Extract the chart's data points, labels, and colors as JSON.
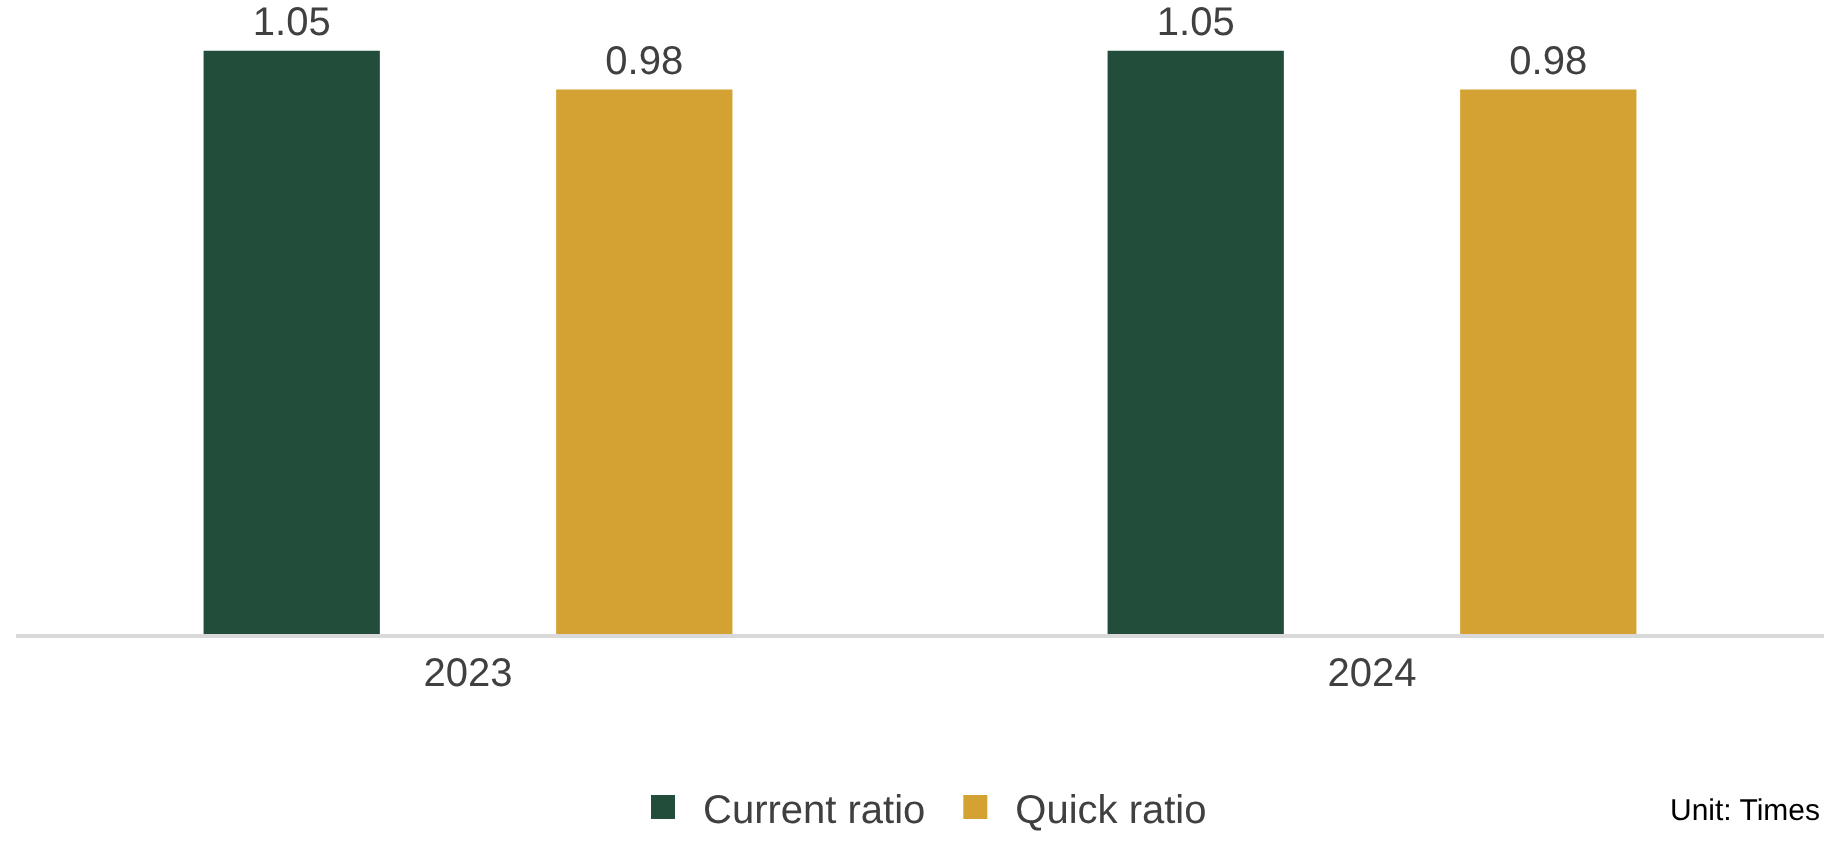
{
  "chart_data": {
    "type": "bar",
    "categories": [
      "2023",
      "2024"
    ],
    "series": [
      {
        "name": "Current ratio",
        "color": "#214d3a",
        "values": [
          1.05,
          1.05
        ]
      },
      {
        "name": "Quick ratio",
        "color": "#d4a232",
        "values": [
          0.98,
          0.98
        ]
      }
    ],
    "data_labels": true,
    "legend": "bottom",
    "tick_labels": "x",
    "annotations": [
      "Unit: Times"
    ]
  }
}
